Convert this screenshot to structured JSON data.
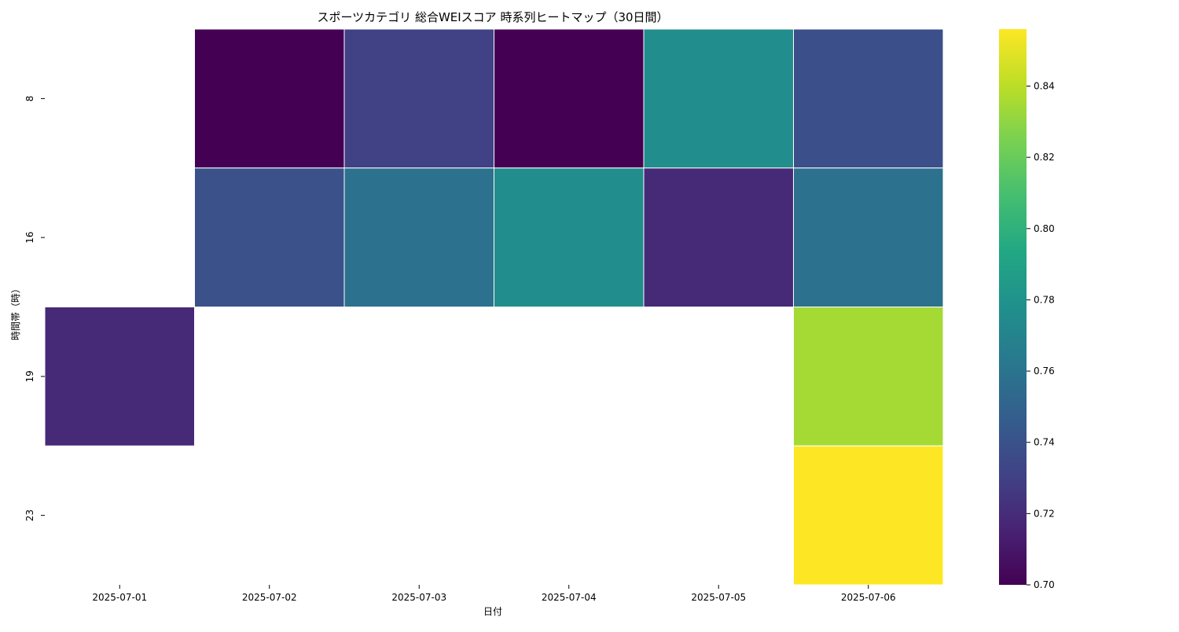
{
  "chart_data": {
    "type": "heatmap",
    "title": "スポーツカテゴリ 総合WEIスコア 時系列ヒートマップ（30日間）",
    "xlabel": "日付",
    "ylabel": "時間帯（時）",
    "x": [
      "2025-07-01",
      "2025-07-02",
      "2025-07-03",
      "2025-07-04",
      "2025-07-05",
      "2025-07-06"
    ],
    "y": [
      "8",
      "16",
      "19",
      "23"
    ],
    "values": [
      [
        null,
        0.7,
        0.73,
        0.7,
        0.776,
        0.738
      ],
      [
        null,
        0.739,
        0.758,
        0.776,
        0.719,
        0.758
      ],
      [
        0.719,
        null,
        null,
        null,
        null,
        0.835
      ],
      [
        null,
        null,
        null,
        null,
        null,
        0.856
      ]
    ],
    "colorbar": {
      "min": 0.7,
      "max": 0.856,
      "ticks": [
        "0.70",
        "0.72",
        "0.74",
        "0.76",
        "0.78",
        "0.80",
        "0.82",
        "0.84"
      ],
      "colormap": "viridis"
    },
    "missing_color": "#ffffff",
    "cell_border_color": "#ffffff"
  }
}
